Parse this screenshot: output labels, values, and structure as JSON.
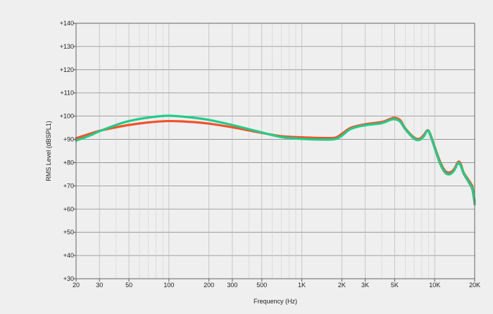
{
  "chart_data": {
    "type": "line",
    "title": "",
    "xlabel": "Frequency (Hz)",
    "ylabel": "RMS Level (dBSPL1)",
    "x_scale": "log",
    "xlim": [
      20,
      20000
    ],
    "ylim": [
      30,
      140
    ],
    "grid": true,
    "legend": "none",
    "x_ticks": [
      {
        "value": 20,
        "label": "20"
      },
      {
        "value": 30,
        "label": "30"
      },
      {
        "value": 50,
        "label": "50"
      },
      {
        "value": 100,
        "label": "100"
      },
      {
        "value": 200,
        "label": "200"
      },
      {
        "value": 300,
        "label": "300"
      },
      {
        "value": 500,
        "label": "500"
      },
      {
        "value": 1000,
        "label": "1K"
      },
      {
        "value": 2000,
        "label": "2K"
      },
      {
        "value": 3000,
        "label": "3K"
      },
      {
        "value": 5000,
        "label": "5K"
      },
      {
        "value": 10000,
        "label": "10K"
      },
      {
        "value": 20000,
        "label": "20K"
      }
    ],
    "x_minor_ticks": [
      40,
      60,
      70,
      80,
      90,
      400,
      600,
      700,
      800,
      900,
      4000,
      6000,
      7000,
      8000,
      9000
    ],
    "y_ticks": [
      {
        "value": 30,
        "label": "+30"
      },
      {
        "value": 40,
        "label": "+40"
      },
      {
        "value": 50,
        "label": "+50"
      },
      {
        "value": 60,
        "label": "+60"
      },
      {
        "value": 70,
        "label": "+70"
      },
      {
        "value": 80,
        "label": "+80"
      },
      {
        "value": 90,
        "label": "+90"
      },
      {
        "value": 100,
        "label": "+100"
      },
      {
        "value": 110,
        "label": "+110"
      },
      {
        "value": 120,
        "label": "+120"
      },
      {
        "value": 130,
        "label": "+130"
      },
      {
        "value": 140,
        "label": "+140"
      }
    ],
    "series": [
      {
        "color": "#f0522a",
        "points": [
          [
            20,
            90.5
          ],
          [
            25,
            92.3
          ],
          [
            30,
            93.7
          ],
          [
            40,
            95.2
          ],
          [
            50,
            96.2
          ],
          [
            70,
            97.3
          ],
          [
            100,
            97.9
          ],
          [
            150,
            97.5
          ],
          [
            200,
            96.8
          ],
          [
            300,
            95.2
          ],
          [
            500,
            92.8
          ],
          [
            700,
            91.4
          ],
          [
            1000,
            90.9
          ],
          [
            1500,
            90.6
          ],
          [
            1800,
            90.8
          ],
          [
            2000,
            92.4
          ],
          [
            2300,
            94.8
          ],
          [
            2700,
            96.0
          ],
          [
            3200,
            96.8
          ],
          [
            4000,
            97.5
          ],
          [
            4600,
            98.8
          ],
          [
            5000,
            99.3
          ],
          [
            5500,
            98.3
          ],
          [
            6000,
            94.8
          ],
          [
            7000,
            90.8
          ],
          [
            7700,
            90.3
          ],
          [
            8300,
            92.0
          ],
          [
            8800,
            93.9
          ],
          [
            9200,
            92.7
          ],
          [
            10000,
            86.8
          ],
          [
            11000,
            80.3
          ],
          [
            12000,
            76.4
          ],
          [
            13000,
            75.8
          ],
          [
            14000,
            77.2
          ],
          [
            15000,
            80.3
          ],
          [
            15700,
            79.4
          ],
          [
            16500,
            75.8
          ],
          [
            18000,
            72.4
          ],
          [
            19200,
            69.6
          ],
          [
            20000,
            63.2
          ]
        ]
      },
      {
        "color": "#22cc88",
        "points": [
          [
            20,
            89.5
          ],
          [
            25,
            91.5
          ],
          [
            30,
            93.5
          ],
          [
            40,
            96.2
          ],
          [
            50,
            97.9
          ],
          [
            70,
            99.4
          ],
          [
            100,
            100.2
          ],
          [
            150,
            99.4
          ],
          [
            200,
            98.4
          ],
          [
            300,
            96.2
          ],
          [
            500,
            93.0
          ],
          [
            700,
            91.0
          ],
          [
            1000,
            90.2
          ],
          [
            1500,
            89.9
          ],
          [
            1800,
            90.2
          ],
          [
            2000,
            91.6
          ],
          [
            2300,
            94.3
          ],
          [
            2700,
            95.6
          ],
          [
            3200,
            96.3
          ],
          [
            4000,
            97.0
          ],
          [
            4600,
            98.3
          ],
          [
            5000,
            98.7
          ],
          [
            5500,
            97.6
          ],
          [
            6000,
            94.4
          ],
          [
            7000,
            90.3
          ],
          [
            7700,
            89.8
          ],
          [
            8300,
            91.4
          ],
          [
            8800,
            93.8
          ],
          [
            9200,
            92.3
          ],
          [
            10000,
            86.2
          ],
          [
            11000,
            79.4
          ],
          [
            12000,
            75.6
          ],
          [
            13000,
            75.0
          ],
          [
            14000,
            76.6
          ],
          [
            15000,
            79.8
          ],
          [
            15700,
            78.6
          ],
          [
            16500,
            75.3
          ],
          [
            18000,
            71.6
          ],
          [
            19200,
            68.4
          ],
          [
            20000,
            62.0
          ]
        ]
      }
    ]
  }
}
